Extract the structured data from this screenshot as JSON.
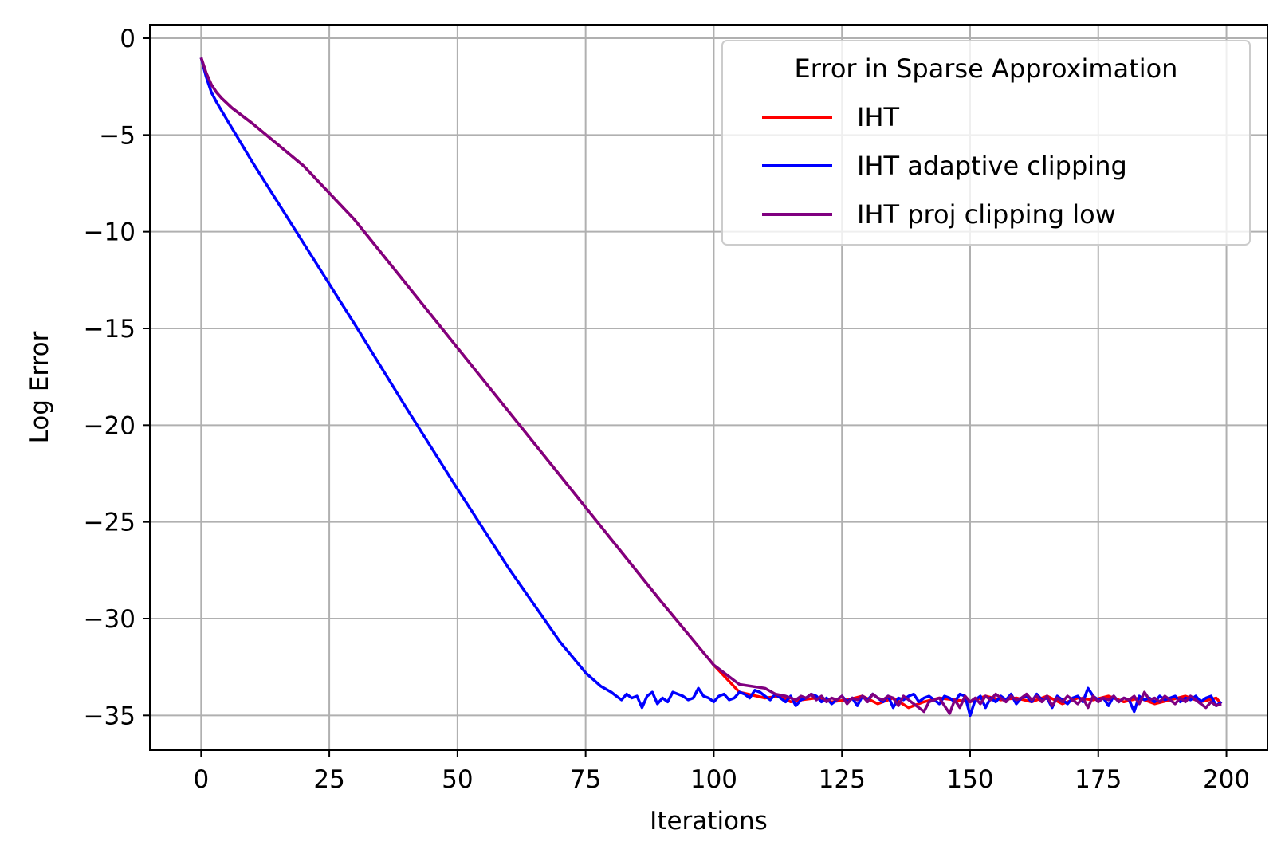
{
  "chart_data": {
    "type": "line",
    "title": "",
    "xlabel": "Iterations",
    "ylabel": "Log Error",
    "xlim": [
      -10,
      208
    ],
    "ylim": [
      -36.8,
      0.7
    ],
    "grid": true,
    "x_ticks": [
      0,
      25,
      50,
      75,
      100,
      125,
      150,
      175,
      200
    ],
    "x_tick_labels": [
      "0",
      "25",
      "50",
      "75",
      "100",
      "125",
      "150",
      "175",
      "200"
    ],
    "y_ticks": [
      0,
      -5,
      -10,
      -15,
      -20,
      -25,
      -30,
      -35
    ],
    "y_tick_labels": [
      "0",
      "−5",
      "−10",
      "−15",
      "−20",
      "−25",
      "−30",
      "−35"
    ],
    "legend": {
      "title": "Error in Sparse Approximation",
      "placement": "upper right",
      "entries": [
        "IHT",
        "IHT adaptive clipping",
        "IHT proj clipping low"
      ]
    },
    "series": [
      {
        "name": "IHT",
        "color": "#ff0000",
        "x": [
          0,
          1,
          2,
          3,
          4,
          6,
          10,
          20,
          30,
          40,
          50,
          60,
          70,
          80,
          90,
          100,
          105,
          110,
          113,
          115,
          117,
          120,
          123,
          126,
          129,
          132,
          135,
          138,
          141,
          144,
          147,
          150,
          153,
          156,
          159,
          162,
          165,
          168,
          171,
          174,
          177,
          180,
          183,
          186,
          189,
          192,
          195,
          198,
          199
        ],
        "y": [
          -1.0,
          -1.8,
          -2.4,
          -2.8,
          -3.1,
          -3.6,
          -4.4,
          -6.6,
          -9.4,
          -12.7,
          -16.0,
          -19.3,
          -22.6,
          -25.9,
          -29.2,
          -32.4,
          -33.8,
          -34.1,
          -34.0,
          -34.3,
          -34.2,
          -34.1,
          -34.3,
          -34.2,
          -34.0,
          -34.4,
          -34.1,
          -34.6,
          -34.3,
          -34.1,
          -34.2,
          -34.3,
          -34.0,
          -34.2,
          -34.1,
          -34.3,
          -34.0,
          -34.4,
          -34.1,
          -34.2,
          -34.0,
          -34.3,
          -34.1,
          -34.4,
          -34.2,
          -34.0,
          -34.3,
          -34.1,
          -34.4
        ]
      },
      {
        "name": "IHT adaptive clipping",
        "color": "#0000ff",
        "x": [
          0,
          1,
          2,
          3,
          5,
          10,
          20,
          30,
          40,
          50,
          60,
          70,
          75,
          78,
          80,
          81,
          82,
          83,
          84,
          85,
          86,
          87,
          88,
          89,
          90,
          91,
          92,
          93,
          94,
          95,
          96,
          97,
          98,
          99,
          100,
          101,
          102,
          103,
          104,
          105,
          106,
          107,
          108,
          109,
          110,
          111,
          112,
          113,
          114,
          115,
          116,
          117,
          118,
          119,
          120,
          121,
          122,
          123,
          124,
          125,
          126,
          127,
          128,
          129,
          130,
          131,
          132,
          133,
          134,
          135,
          136,
          137,
          138,
          139,
          140,
          141,
          142,
          143,
          144,
          145,
          146,
          147,
          148,
          149,
          150,
          151,
          152,
          153,
          154,
          155,
          156,
          157,
          158,
          159,
          160,
          161,
          162,
          163,
          164,
          165,
          166,
          167,
          168,
          169,
          170,
          171,
          172,
          173,
          174,
          175,
          176,
          177,
          178,
          179,
          180,
          181,
          182,
          183,
          184,
          185,
          186,
          187,
          188,
          189,
          190,
          191,
          192,
          193,
          194,
          195,
          196,
          197,
          198,
          199
        ],
        "y": [
          -1.0,
          -2.0,
          -2.8,
          -3.3,
          -4.2,
          -6.4,
          -10.6,
          -14.8,
          -19.1,
          -23.3,
          -27.4,
          -31.2,
          -32.8,
          -33.5,
          -33.8,
          -34.0,
          -34.2,
          -33.9,
          -34.1,
          -34.0,
          -34.6,
          -34.0,
          -33.8,
          -34.4,
          -34.1,
          -34.3,
          -33.8,
          -33.9,
          -34.0,
          -34.2,
          -34.1,
          -33.6,
          -34.0,
          -34.1,
          -34.3,
          -34.0,
          -33.9,
          -34.2,
          -34.1,
          -33.8,
          -33.9,
          -34.1,
          -33.7,
          -33.8,
          -34.0,
          -34.2,
          -33.9,
          -34.1,
          -34.3,
          -34.0,
          -34.5,
          -34.2,
          -34.1,
          -33.9,
          -34.0,
          -34.3,
          -34.1,
          -34.4,
          -34.2,
          -34.0,
          -34.3,
          -34.1,
          -34.5,
          -34.0,
          -34.2,
          -33.9,
          -34.1,
          -34.3,
          -34.0,
          -34.6,
          -34.1,
          -34.2,
          -34.0,
          -33.9,
          -34.3,
          -34.1,
          -34.0,
          -34.2,
          -34.4,
          -34.0,
          -34.1,
          -34.3,
          -33.9,
          -34.0,
          -35.0,
          -34.2,
          -34.0,
          -34.6,
          -34.1,
          -34.3,
          -34.0,
          -34.2,
          -33.9,
          -34.4,
          -34.1,
          -34.0,
          -34.3,
          -33.9,
          -34.2,
          -34.1,
          -34.6,
          -34.0,
          -34.2,
          -34.4,
          -34.1,
          -34.0,
          -34.3,
          -33.6,
          -34.0,
          -34.2,
          -34.1,
          -34.5,
          -34.0,
          -34.3,
          -34.1,
          -34.2,
          -34.8,
          -34.0,
          -34.2,
          -34.1,
          -34.3,
          -34.0,
          -34.2,
          -34.1,
          -34.0,
          -34.3,
          -34.1,
          -34.2,
          -34.0,
          -34.3,
          -34.1,
          -34.0,
          -34.5,
          -34.3
        ]
      },
      {
        "name": "IHT proj clipping low",
        "color": "#800080",
        "x": [
          0,
          1,
          2,
          3,
          4,
          6,
          10,
          20,
          30,
          40,
          50,
          60,
          70,
          80,
          90,
          100,
          105,
          110,
          112,
          114,
          115,
          116,
          117,
          118,
          119,
          120,
          121,
          122,
          123,
          124,
          125,
          126,
          127,
          128,
          129,
          130,
          131,
          132,
          133,
          134,
          135,
          136,
          137,
          138,
          139,
          140,
          141,
          142,
          143,
          144,
          145,
          146,
          147,
          148,
          149,
          150,
          151,
          152,
          153,
          154,
          155,
          156,
          157,
          158,
          159,
          160,
          161,
          162,
          163,
          164,
          165,
          166,
          167,
          168,
          169,
          170,
          171,
          172,
          173,
          174,
          175,
          176,
          177,
          178,
          179,
          180,
          181,
          182,
          183,
          184,
          185,
          186,
          187,
          188,
          189,
          190,
          191,
          192,
          193,
          194,
          195,
          196,
          197,
          198,
          199
        ],
        "y": [
          -1.0,
          -1.8,
          -2.4,
          -2.8,
          -3.1,
          -3.6,
          -4.4,
          -6.6,
          -9.4,
          -12.7,
          -16.0,
          -19.3,
          -22.6,
          -25.9,
          -29.2,
          -32.4,
          -33.4,
          -33.6,
          -33.9,
          -34.0,
          -34.1,
          -34.2,
          -34.0,
          -34.1,
          -33.9,
          -34.2,
          -34.0,
          -34.3,
          -34.1,
          -34.2,
          -34.0,
          -34.4,
          -34.1,
          -34.2,
          -34.0,
          -34.3,
          -33.9,
          -34.1,
          -34.2,
          -34.0,
          -34.1,
          -34.5,
          -34.0,
          -34.2,
          -34.4,
          -34.6,
          -34.8,
          -34.3,
          -34.2,
          -34.1,
          -34.5,
          -34.9,
          -34.2,
          -34.6,
          -34.0,
          -34.3,
          -34.1,
          -34.4,
          -34.0,
          -34.2,
          -33.9,
          -34.1,
          -34.3,
          -34.0,
          -34.2,
          -34.1,
          -33.9,
          -34.2,
          -34.0,
          -34.3,
          -34.0,
          -34.5,
          -34.1,
          -34.3,
          -34.0,
          -34.2,
          -34.4,
          -34.1,
          -34.6,
          -34.0,
          -34.3,
          -34.1,
          -34.2,
          -34.0,
          -34.3,
          -34.1,
          -34.2,
          -34.0,
          -34.4,
          -33.8,
          -34.2,
          -34.1,
          -34.3,
          -34.0,
          -34.2,
          -34.4,
          -34.1,
          -34.3,
          -34.0,
          -34.2,
          -34.4,
          -34.6,
          -34.3,
          -34.5,
          -34.4
        ]
      }
    ]
  }
}
